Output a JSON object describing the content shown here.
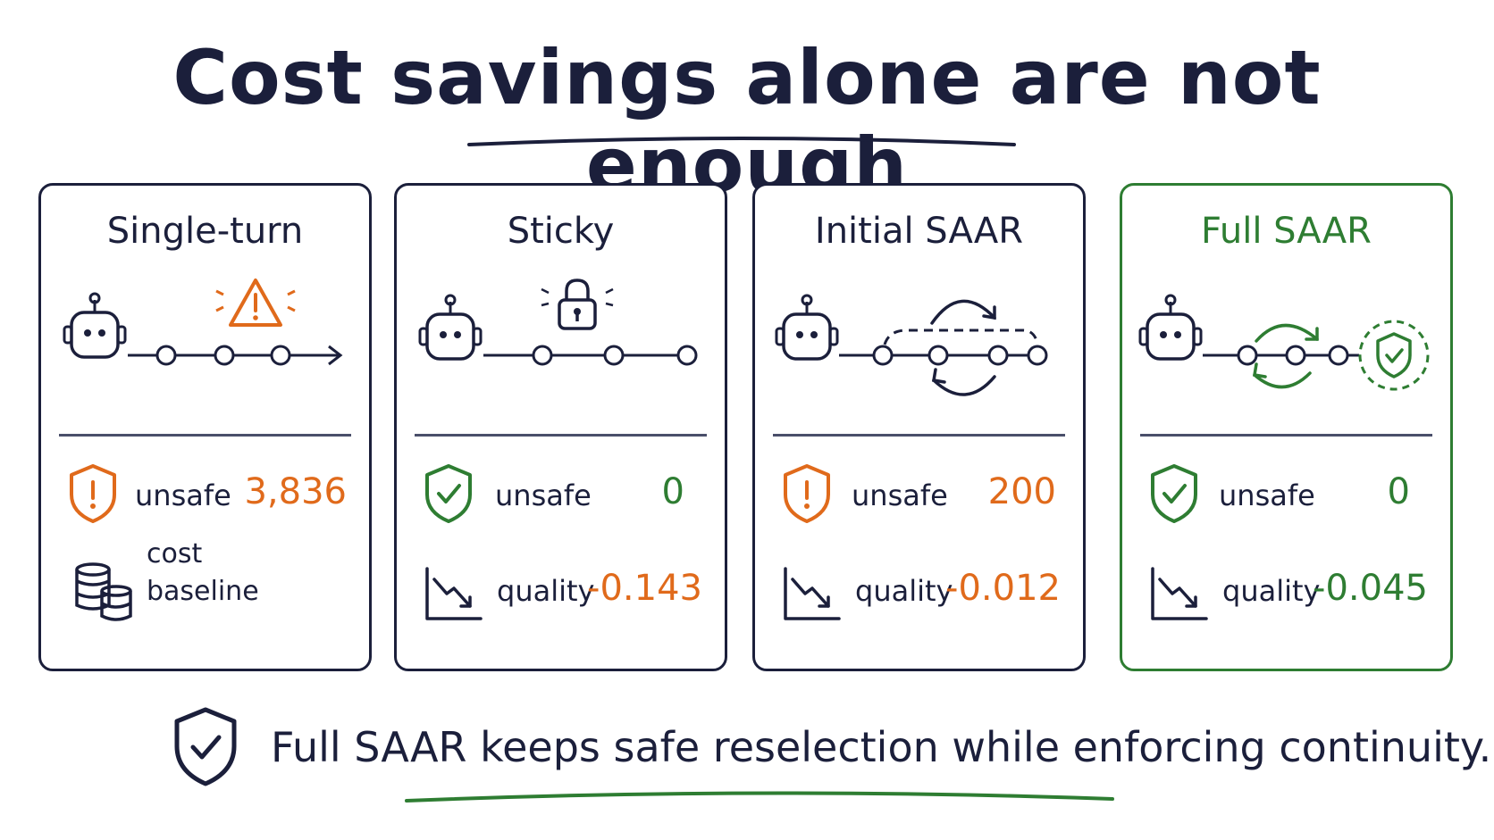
{
  "title": "Cost savings alone are not enough",
  "cards": [
    {
      "name": "Single-turn",
      "metric1_label": "unsafe",
      "metric1_value": "3,836",
      "metric2_line1": "cost",
      "metric2_line2": "baseline"
    },
    {
      "name": "Sticky",
      "metric1_label": "unsafe",
      "metric1_value": "0",
      "metric2_label": "quality",
      "metric2_value": "-0.143"
    },
    {
      "name": "Initial SAAR",
      "metric1_label": "unsafe",
      "metric1_value": "200",
      "metric2_label": "quality",
      "metric2_value": "-0.012"
    },
    {
      "name": "Full SAAR",
      "metric1_label": "unsafe",
      "metric1_value": "0",
      "metric2_label": "quality",
      "metric2_value": "-0.045"
    }
  ],
  "footer": "Full SAAR keeps safe reselection while enforcing continuity.",
  "colors": {
    "ink": "#1b1f3b",
    "orange": "#e06a1b",
    "green": "#2e7d32",
    "divider": "#4a4f6a"
  },
  "icons": [
    "robot-icon",
    "warning-icon",
    "lock-icon",
    "loop-arrow-icon",
    "shield-check-icon",
    "shield-alert-icon",
    "coin-stack-icon",
    "trend-down-icon"
  ]
}
